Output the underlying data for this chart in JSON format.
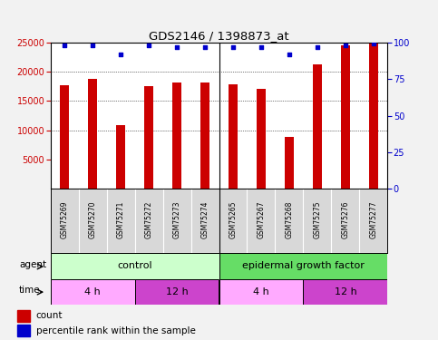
{
  "title": "GDS2146 / 1398873_at",
  "samples": [
    "GSM75269",
    "GSM75270",
    "GSM75271",
    "GSM75272",
    "GSM75273",
    "GSM75274",
    "GSM75265",
    "GSM75267",
    "GSM75268",
    "GSM75275",
    "GSM75276",
    "GSM75277"
  ],
  "counts": [
    17700,
    18800,
    10900,
    17600,
    18100,
    18200,
    17900,
    17100,
    8900,
    21300,
    24500,
    24800
  ],
  "percentile": [
    98,
    98,
    92,
    98,
    97,
    97,
    97,
    97,
    92,
    97,
    98,
    99
  ],
  "bar_color": "#cc0000",
  "dot_color": "#0000cc",
  "ylim_left": [
    0,
    25000
  ],
  "ylim_right": [
    0,
    100
  ],
  "yticks_left": [
    5000,
    10000,
    15000,
    20000,
    25000
  ],
  "yticks_right": [
    0,
    25,
    50,
    75,
    100
  ],
  "grid_vals": [
    10000,
    15000,
    20000
  ],
  "plot_bg": "#ffffff",
  "fig_bg": "#f2f2f2",
  "agent_control_label": "control",
  "agent_egf_label": "epidermal growth factor",
  "agent_control_color": "#ccffcc",
  "agent_egf_color": "#66dd66",
  "time_4h_color": "#ffaaff",
  "time_12h_color": "#cc44cc",
  "time_labels": [
    "4 h",
    "12 h",
    "4 h",
    "12 h"
  ],
  "legend_count_label": "count",
  "legend_pct_label": "percentile rank within the sample",
  "bar_width": 0.35
}
